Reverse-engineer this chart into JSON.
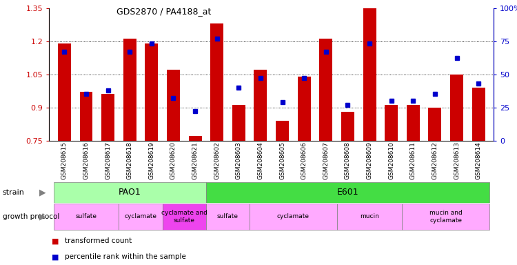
{
  "title": "GDS2870 / PA4188_at",
  "samples": [
    "GSM208615",
    "GSM208616",
    "GSM208617",
    "GSM208618",
    "GSM208619",
    "GSM208620",
    "GSM208621",
    "GSM208602",
    "GSM208603",
    "GSM208604",
    "GSM208605",
    "GSM208606",
    "GSM208607",
    "GSM208608",
    "GSM208609",
    "GSM208610",
    "GSM208611",
    "GSM208612",
    "GSM208613",
    "GSM208614"
  ],
  "transformed_count": [
    1.19,
    0.97,
    0.96,
    1.21,
    1.19,
    1.07,
    0.77,
    1.28,
    0.91,
    1.07,
    0.84,
    1.04,
    1.21,
    0.88,
    1.35,
    0.91,
    0.91,
    0.9,
    1.05,
    0.99
  ],
  "percentile_rank": [
    67,
    35,
    38,
    67,
    73,
    32,
    22,
    77,
    40,
    47,
    29,
    47,
    67,
    27,
    73,
    30,
    30,
    35,
    62,
    43
  ],
  "ylim_left": [
    0.75,
    1.35
  ],
  "ylim_right": [
    0,
    100
  ],
  "yticks_left": [
    0.75,
    0.9,
    1.05,
    1.2,
    1.35
  ],
  "yticks_right": [
    0,
    25,
    50,
    75,
    100
  ],
  "bar_color": "#cc0000",
  "dot_color": "#0000cc",
  "strain_pao1": {
    "label": "PAO1",
    "start": 0,
    "end": 7,
    "color": "#aaffaa"
  },
  "strain_e601": {
    "label": "E601",
    "start": 7,
    "end": 20,
    "color": "#44dd44"
  },
  "growth_protocols": [
    {
      "label": "sulfate",
      "start": 0,
      "end": 3
    },
    {
      "label": "cyclamate",
      "start": 3,
      "end": 5
    },
    {
      "label": "cyclamate and\nsulfate",
      "start": 5,
      "end": 7
    },
    {
      "label": "sulfate",
      "start": 7,
      "end": 9
    },
    {
      "label": "cyclamate",
      "start": 9,
      "end": 13
    },
    {
      "label": "mucin",
      "start": 13,
      "end": 16
    },
    {
      "label": "mucin and\ncyclamate",
      "start": 16,
      "end": 20
    }
  ],
  "gp_color_normal": "#ffaaff",
  "gp_color_special": "#ee44ee",
  "legend_items": [
    {
      "label": "transformed count",
      "color": "#cc0000"
    },
    {
      "label": "percentile rank within the sample",
      "color": "#0000cc"
    }
  ],
  "bg_xtick": "#dddddd"
}
